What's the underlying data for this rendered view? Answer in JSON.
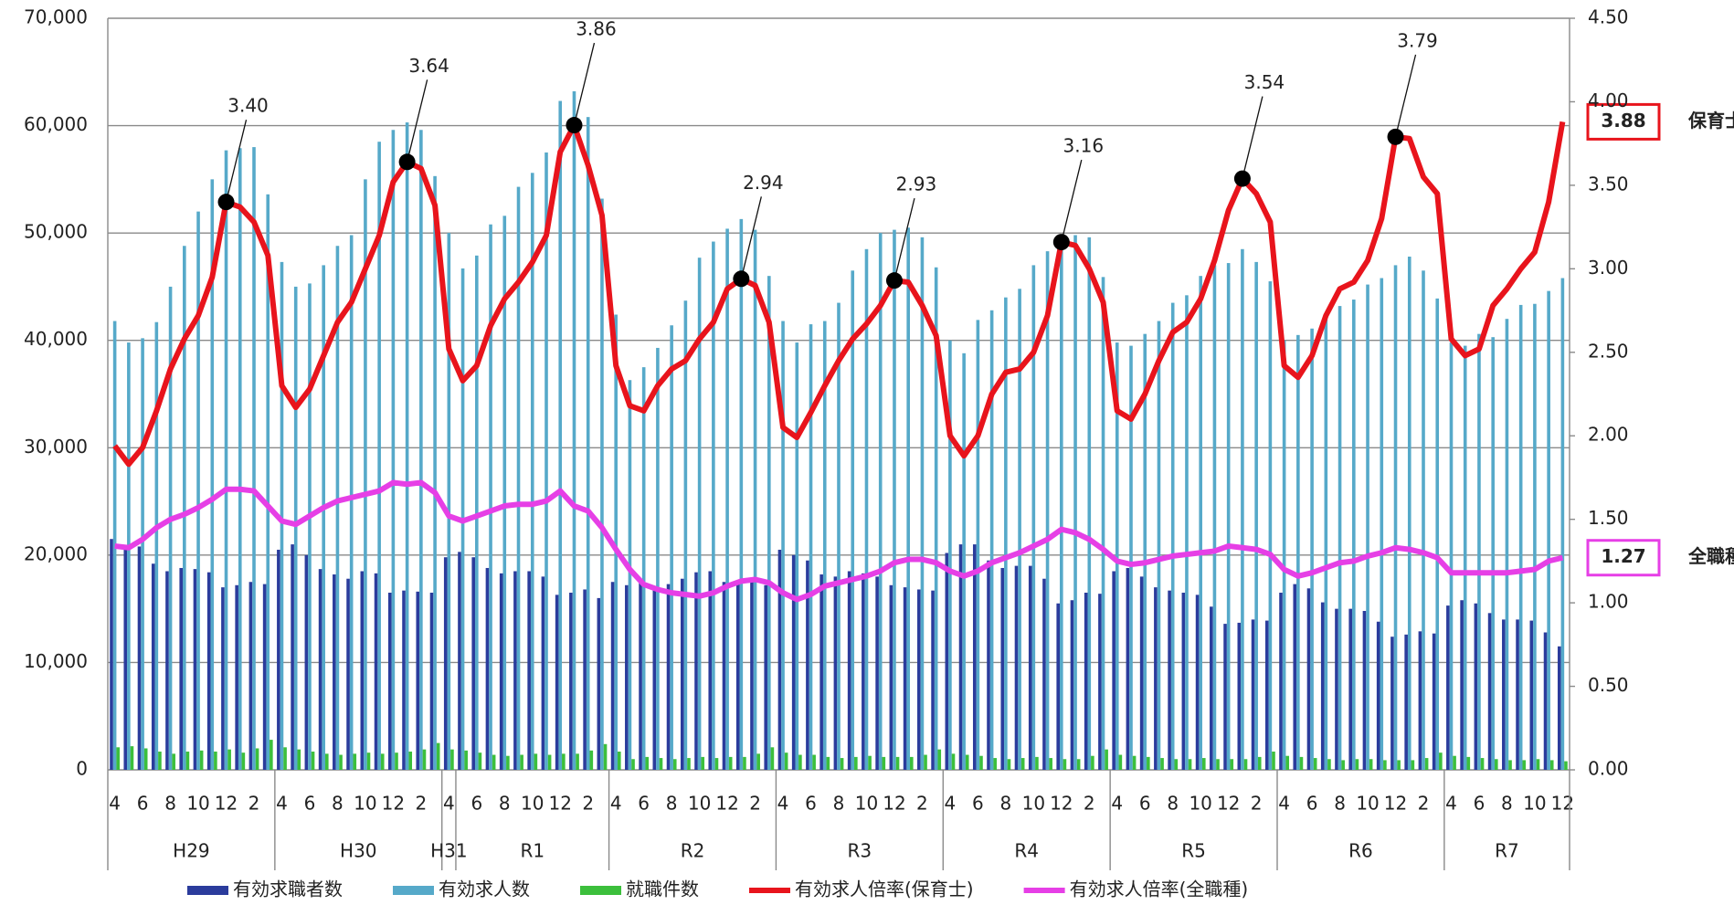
{
  "chart_data": {
    "type": "bar",
    "categories": [
      "4",
      null,
      "6",
      null,
      "8",
      null,
      "10",
      null,
      "12",
      null,
      "2",
      null,
      "4",
      null,
      "6",
      null,
      "8",
      null,
      "10",
      null,
      "12",
      null,
      "2",
      null,
      "4",
      null,
      "6",
      null,
      "8",
      null,
      "10",
      null,
      "12",
      null,
      "2",
      null,
      "4",
      null,
      "6",
      null,
      "8",
      null,
      "10",
      null,
      "12",
      null,
      "2",
      null,
      "4",
      null,
      "6",
      null,
      "8",
      null,
      "10",
      null,
      "12",
      null,
      "2",
      null,
      "4",
      null,
      "6",
      null,
      "8",
      null,
      "10",
      null,
      "12",
      null,
      "2",
      null,
      "4",
      null,
      "6",
      null,
      "8",
      null,
      "10",
      null,
      "12",
      null,
      "2",
      null,
      "4",
      null,
      "6",
      null,
      "8",
      null,
      "10",
      null,
      "12",
      null,
      "2",
      null,
      "4",
      null,
      "6",
      null,
      "8",
      null,
      "10",
      null,
      "12"
    ],
    "groups": [
      {
        "label": "H29",
        "span": 12
      },
      {
        "label": "H30",
        "span": 12
      },
      {
        "label": "H31",
        "span": 1
      },
      {
        "label": "R1",
        "span": 11
      },
      {
        "label": "R2",
        "span": 12
      },
      {
        "label": "R3",
        "span": 12
      },
      {
        "label": "R4",
        "span": 12
      },
      {
        "label": "R5",
        "span": 12
      },
      {
        "label": "R6",
        "span": 12
      },
      {
        "label": "R7",
        "span": 9
      }
    ],
    "ylim": [
      0,
      70000
    ],
    "yticks": [
      {
        "value": 0,
        "label": "0"
      },
      {
        "value": 10000,
        "label": "10,000"
      },
      {
        "value": 20000,
        "label": "20,000"
      },
      {
        "value": 30000,
        "label": "30,000"
      },
      {
        "value": 40000,
        "label": "40,000"
      },
      {
        "value": 50000,
        "label": "50,000"
      },
      {
        "value": 60000,
        "label": "60,000"
      },
      {
        "value": 70000,
        "label": "70,000"
      }
    ],
    "y2lim": [
      0,
      4.5
    ],
    "y2ticks": [
      {
        "value": 0,
        "label": "0.00"
      },
      {
        "value": 0.5,
        "label": "0.50"
      },
      {
        "value": 1,
        "label": "1.00"
      },
      {
        "value": 1.5,
        "label": "1.50"
      },
      {
        "value": 2,
        "label": "2.00"
      },
      {
        "value": 2.5,
        "label": "2.50"
      },
      {
        "value": 3,
        "label": "3.00"
      },
      {
        "value": 3.5,
        "label": "3.50"
      },
      {
        "value": 4,
        "label": "4.00"
      },
      {
        "value": 4.5,
        "label": "4.50"
      }
    ],
    "grid": true,
    "legend": "bottom",
    "series": [
      {
        "name": "有効求職者数",
        "type": "bar",
        "color": "#2b3c9c",
        "values": [
          21500,
          20500,
          20800,
          19200,
          18500,
          18800,
          18700,
          18400,
          17000,
          17200,
          17500,
          17300,
          20500,
          21000,
          20000,
          18700,
          18200,
          17800,
          18500,
          18300,
          16500,
          16700,
          16600,
          16500,
          19800,
          20300,
          19800,
          18800,
          18300,
          18500,
          18500,
          18000,
          16300,
          16500,
          16800,
          16000,
          17500,
          17200,
          17400,
          17000,
          17300,
          17800,
          18400,
          18500,
          17500,
          17600,
          17800,
          17200,
          20500,
          20000,
          19500,
          18200,
          18000,
          18500,
          18300,
          18000,
          17200,
          17000,
          16800,
          16700,
          20200,
          21000,
          21000,
          19500,
          18800,
          19000,
          19000,
          17800,
          15500,
          15800,
          16500,
          16400,
          18500,
          18800,
          18000,
          17000,
          16700,
          16500,
          16300,
          15200,
          13600,
          13700,
          14000,
          13900,
          16500,
          17300,
          16900,
          15600,
          15000,
          15000,
          14800,
          13800,
          12400,
          12600,
          12900,
          12700,
          15300,
          15800,
          15500,
          14600,
          14000,
          14000,
          13900,
          12800,
          11500
        ]
      },
      {
        "name": "有効求人数",
        "type": "bar",
        "color": "#56a9c9",
        "values": [
          41800,
          39800,
          40200,
          41700,
          45000,
          48800,
          52000,
          55000,
          57700,
          57900,
          58000,
          53600,
          47300,
          45000,
          45300,
          47000,
          48800,
          49800,
          55000,
          58500,
          59600,
          60300,
          59600,
          55300,
          50000,
          46700,
          47900,
          50800,
          51600,
          54300,
          55600,
          57500,
          62300,
          63200,
          60800,
          53200,
          42400,
          36300,
          37500,
          39300,
          41400,
          43700,
          47700,
          49200,
          50400,
          51300,
          50300,
          46000,
          41800,
          39800,
          41500,
          41800,
          43500,
          46500,
          48500,
          50000,
          50300,
          50500,
          49600,
          46800,
          40000,
          38800,
          41900,
          42800,
          44000,
          44800,
          47000,
          48300,
          48900,
          49800,
          49600,
          45900,
          39800,
          39500,
          40600,
          41800,
          43500,
          44200,
          46000,
          47000,
          47200,
          48500,
          47300,
          45500,
          40000,
          40500,
          41100,
          42300,
          43200,
          43800,
          45200,
          45800,
          47000,
          47800,
          46500,
          43900,
          39800,
          39500,
          40600,
          40300,
          42000,
          43300,
          43400,
          44600,
          45800
        ]
      },
      {
        "name": "就職件数",
        "type": "bar",
        "color": "#3cbf3c",
        "values": [
          2100,
          2200,
          2000,
          1700,
          1500,
          1700,
          1800,
          1700,
          1900,
          1600,
          2000,
          2800,
          2100,
          1900,
          1700,
          1500,
          1400,
          1500,
          1600,
          1500,
          1600,
          1700,
          1900,
          2500,
          1900,
          1800,
          1600,
          1400,
          1300,
          1400,
          1500,
          1400,
          1500,
          1500,
          1800,
          2400,
          1700,
          1000,
          1200,
          1100,
          1000,
          1100,
          1200,
          1100,
          1200,
          1200,
          1500,
          2100,
          1600,
          1400,
          1400,
          1200,
          1100,
          1200,
          1300,
          1200,
          1200,
          1200,
          1400,
          1900,
          1500,
          1400,
          1300,
          1100,
          1000,
          1100,
          1200,
          1100,
          1000,
          1000,
          1300,
          1900,
          1400,
          1300,
          1200,
          1100,
          1000,
          1000,
          1100,
          1000,
          1000,
          1000,
          1200,
          1700,
          1300,
          1200,
          1100,
          1000,
          900,
          1000,
          1000,
          900,
          900,
          900,
          1100,
          1600,
          1300,
          1200,
          1100,
          1000,
          900,
          900,
          1000,
          900,
          800
        ]
      },
      {
        "name": "有効求人倍率(保育士)",
        "type": "line",
        "axis": "y2",
        "color": "#e8141c",
        "end_label": "保育士",
        "values": [
          1.94,
          1.83,
          1.93,
          2.15,
          2.4,
          2.58,
          2.72,
          2.95,
          3.4,
          3.37,
          3.28,
          3.08,
          2.3,
          2.17,
          2.28,
          2.48,
          2.68,
          2.8,
          3.0,
          3.2,
          3.52,
          3.64,
          3.6,
          3.38,
          2.52,
          2.33,
          2.42,
          2.66,
          2.82,
          2.92,
          3.04,
          3.2,
          3.7,
          3.86,
          3.62,
          3.32,
          2.42,
          2.18,
          2.15,
          2.3,
          2.4,
          2.45,
          2.58,
          2.68,
          2.88,
          2.94,
          2.9,
          2.68,
          2.05,
          1.99,
          2.14,
          2.3,
          2.45,
          2.58,
          2.67,
          2.78,
          2.93,
          2.92,
          2.78,
          2.6,
          2.0,
          1.88,
          2.0,
          2.25,
          2.38,
          2.4,
          2.5,
          2.72,
          3.16,
          3.14,
          3.0,
          2.8,
          2.15,
          2.1,
          2.25,
          2.45,
          2.62,
          2.68,
          2.82,
          3.05,
          3.35,
          3.54,
          3.45,
          3.28,
          2.42,
          2.35,
          2.48,
          2.72,
          2.88,
          2.92,
          3.05,
          3.3,
          3.79,
          3.78,
          3.55,
          3.45,
          2.58,
          2.48,
          2.52,
          2.78,
          2.88,
          3.0,
          3.1,
          3.4,
          3.88
        ],
        "value_labels": [
          null,
          null,
          null,
          null,
          null,
          null,
          null,
          null,
          "3.40",
          null,
          null,
          null,
          null,
          null,
          null,
          null,
          null,
          null,
          null,
          null,
          null,
          "3.64",
          null,
          null,
          null,
          null,
          null,
          null,
          null,
          null,
          null,
          null,
          null,
          "3.86",
          null,
          null,
          null,
          null,
          null,
          null,
          null,
          null,
          null,
          null,
          null,
          "2.94",
          null,
          null,
          null,
          null,
          null,
          null,
          null,
          null,
          null,
          null,
          "2.93",
          null,
          null,
          null,
          null,
          null,
          null,
          null,
          null,
          null,
          null,
          null,
          "3.16",
          null,
          null,
          null,
          null,
          null,
          null,
          null,
          null,
          null,
          null,
          null,
          null,
          "3.54",
          null,
          null,
          null,
          null,
          null,
          null,
          null,
          null,
          null,
          null,
          "3.79",
          null,
          null,
          null,
          null,
          null,
          null,
          null,
          null,
          null,
          null,
          null,
          "3.88"
        ]
      },
      {
        "name": "有効求人倍率(全職種)",
        "type": "line",
        "axis": "y2",
        "color": "#e63fe6",
        "end_label": "全職種",
        "values": [
          1.34,
          1.33,
          1.38,
          1.45,
          1.5,
          1.53,
          1.57,
          1.62,
          1.68,
          1.68,
          1.67,
          1.58,
          1.49,
          1.47,
          1.52,
          1.57,
          1.61,
          1.63,
          1.65,
          1.67,
          1.72,
          1.71,
          1.72,
          1.66,
          1.52,
          1.49,
          1.52,
          1.55,
          1.58,
          1.59,
          1.59,
          1.61,
          1.67,
          1.58,
          1.55,
          1.45,
          1.32,
          1.2,
          1.11,
          1.08,
          1.06,
          1.05,
          1.04,
          1.06,
          1.1,
          1.13,
          1.14,
          1.12,
          1.06,
          1.02,
          1.05,
          1.1,
          1.12,
          1.14,
          1.16,
          1.19,
          1.24,
          1.26,
          1.26,
          1.24,
          1.19,
          1.16,
          1.19,
          1.24,
          1.27,
          1.3,
          1.34,
          1.38,
          1.44,
          1.42,
          1.38,
          1.32,
          1.25,
          1.23,
          1.24,
          1.26,
          1.28,
          1.29,
          1.3,
          1.31,
          1.34,
          1.33,
          1.32,
          1.29,
          1.2,
          1.16,
          1.18,
          1.21,
          1.24,
          1.25,
          1.28,
          1.3,
          1.33,
          1.32,
          1.3,
          1.27,
          1.18,
          1.18,
          1.18,
          1.18,
          1.18,
          1.19,
          1.2,
          1.25,
          1.27
        ],
        "value_labels": [
          null,
          null,
          null,
          null,
          null,
          null,
          null,
          null,
          null,
          null,
          null,
          null,
          null,
          null,
          null,
          null,
          null,
          null,
          null,
          null,
          null,
          null,
          null,
          null,
          null,
          null,
          null,
          null,
          null,
          null,
          null,
          null,
          null,
          null,
          null,
          null,
          null,
          null,
          null,
          null,
          null,
          null,
          null,
          null,
          null,
          null,
          null,
          null,
          null,
          null,
          null,
          null,
          null,
          null,
          null,
          null,
          null,
          null,
          null,
          null,
          null,
          null,
          null,
          null,
          null,
          null,
          null,
          null,
          null,
          null,
          null,
          null,
          null,
          null,
          null,
          null,
          null,
          null,
          null,
          null,
          null,
          null,
          null,
          null,
          null,
          null,
          null,
          null,
          null,
          null,
          null,
          null,
          null,
          null,
          null,
          null,
          null,
          null,
          null,
          null,
          null,
          null,
          null,
          null,
          "1.27"
        ]
      }
    ]
  }
}
